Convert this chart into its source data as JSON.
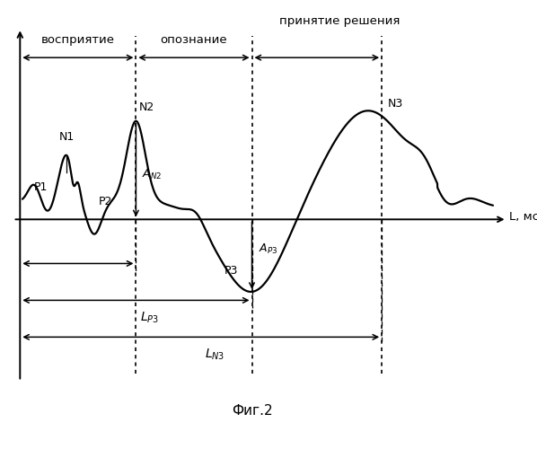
{
  "title": "Фиг.2",
  "xlabel": "L, мс",
  "label_vospriyatie": "восприятие",
  "label_opoznanie": "опознание",
  "label_prinyatie": "принятие решения",
  "label_N1": "N1",
  "label_N2": "N2",
  "label_N3": "N3",
  "label_P1": "P1",
  "label_P2": "P2",
  "label_P3": "P3",
  "label_AN2": "A",
  "label_AP3": "A",
  "label_LP3": "L",
  "label_LN3": "L",
  "bg_color": "#ffffff",
  "line_color": "#000000",
  "dotted_x1": 2.5,
  "dotted_x2": 5.0,
  "dotted_x3": 7.8,
  "xmin": -0.2,
  "xmax": 10.8,
  "ymin": -1.5,
  "ymax": 1.4
}
